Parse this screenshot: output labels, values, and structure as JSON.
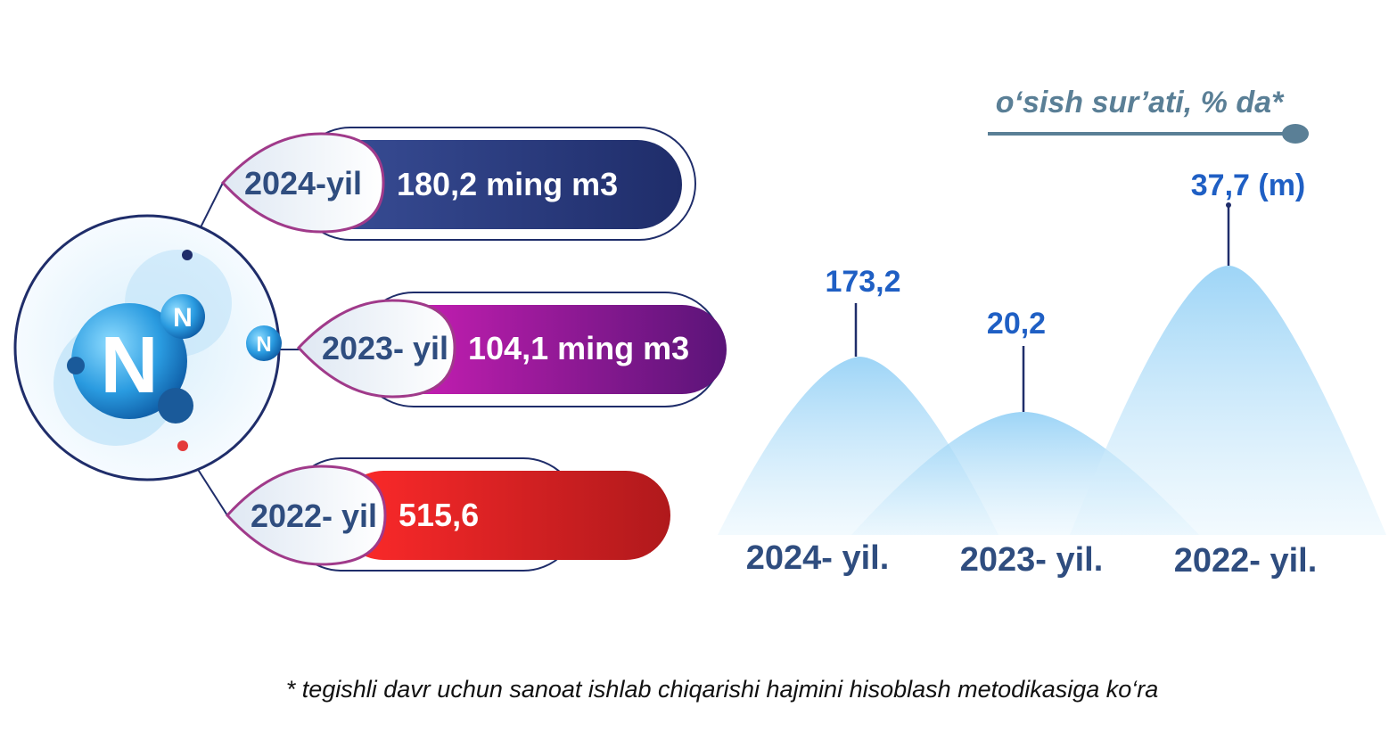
{
  "legend": "o‘sish sur’ati, % da*",
  "atom_labels": [
    "N",
    "N",
    "N"
  ],
  "pills": [
    {
      "year": "2024-yil",
      "value": "180,2 ming m3"
    },
    {
      "year": "2023- yil",
      "value": "104,1 ming m3"
    },
    {
      "year": "2022- yil",
      "value": "515,6"
    }
  ],
  "peaks": [
    {
      "label": "173,2",
      "year": "2024- yil."
    },
    {
      "label": "20,2",
      "year": "2023- yil."
    },
    {
      "label": "37,7 (m)",
      "year": "2022- yil."
    }
  ],
  "footnote": "* tegishli davr uchun sanoat ishlab chiqarishi hajmini hisoblash metodikasiga ko‘ra"
}
